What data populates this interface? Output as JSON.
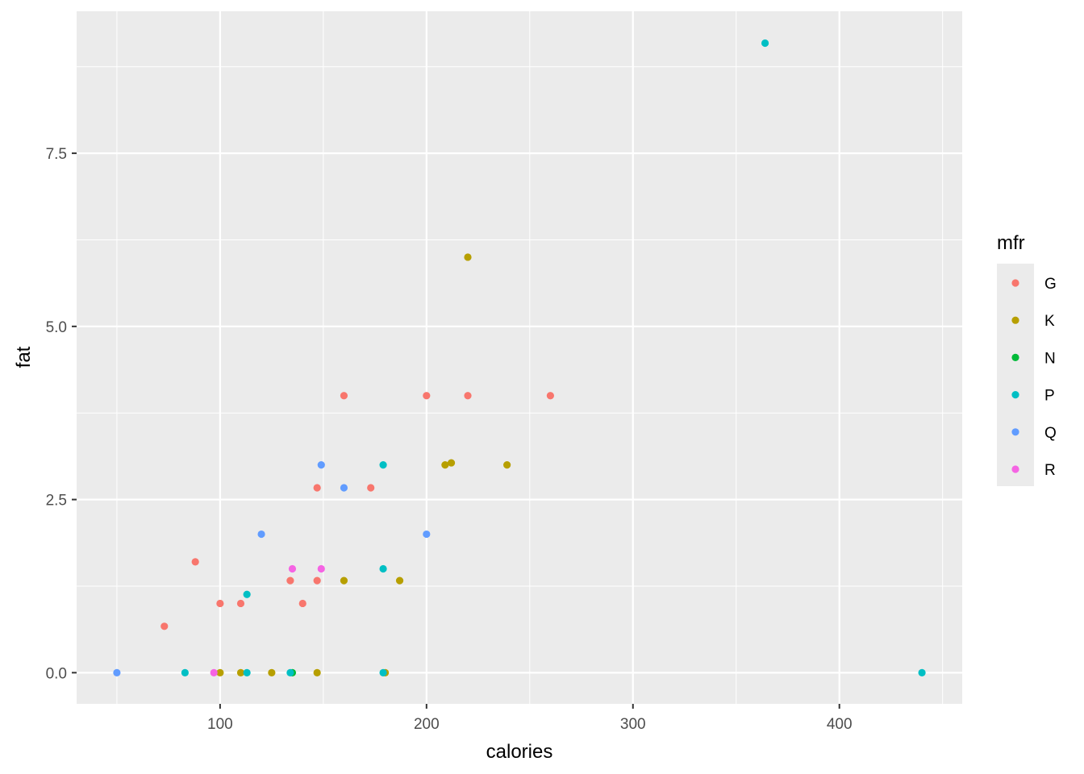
{
  "chart_data": {
    "type": "scatter",
    "title": "",
    "xlabel": "calories",
    "ylabel": "fat",
    "xlim": [
      30.5,
      459.5
    ],
    "ylim": [
      -0.45,
      9.55
    ],
    "x_ticks": [
      100,
      200,
      300,
      400
    ],
    "x_tick_labels": [
      "100",
      "200",
      "300",
      "400"
    ],
    "y_ticks": [
      0,
      2.5,
      5,
      7.5
    ],
    "y_tick_labels": [
      "0.0",
      "2.5",
      "5.0",
      "7.5"
    ],
    "grid": true,
    "legend": {
      "title": "mfr",
      "position": "right"
    },
    "series": [
      {
        "name": "G",
        "color": "#F8766D",
        "points": [
          {
            "x": 73,
            "y": 0.67
          },
          {
            "x": 88,
            "y": 1.6
          },
          {
            "x": 100,
            "y": 1
          },
          {
            "x": 110,
            "y": 1
          },
          {
            "x": 134,
            "y": 1.33
          },
          {
            "x": 140,
            "y": 1
          },
          {
            "x": 147,
            "y": 1.33
          },
          {
            "x": 147,
            "y": 2.67
          },
          {
            "x": 160,
            "y": 4
          },
          {
            "x": 173,
            "y": 2.67
          },
          {
            "x": 200,
            "y": 4
          },
          {
            "x": 220,
            "y": 4
          },
          {
            "x": 260,
            "y": 4
          }
        ]
      },
      {
        "name": "K",
        "color": "#B79F00",
        "points": [
          {
            "x": 100,
            "y": 0
          },
          {
            "x": 110,
            "y": 0
          },
          {
            "x": 125,
            "y": 0
          },
          {
            "x": 147,
            "y": 0
          },
          {
            "x": 160,
            "y": 1.33
          },
          {
            "x": 180,
            "y": 0
          },
          {
            "x": 187,
            "y": 1.33
          },
          {
            "x": 209,
            "y": 3
          },
          {
            "x": 212,
            "y": 3.03
          },
          {
            "x": 220,
            "y": 6
          },
          {
            "x": 239,
            "y": 3
          }
        ]
      },
      {
        "name": "N",
        "color": "#00BA38",
        "points": [
          {
            "x": 135,
            "y": 0
          }
        ]
      },
      {
        "name": "P",
        "color": "#00BFC4",
        "points": [
          {
            "x": 83,
            "y": 0
          },
          {
            "x": 113,
            "y": 0
          },
          {
            "x": 113,
            "y": 1.13
          },
          {
            "x": 134,
            "y": 0
          },
          {
            "x": 179,
            "y": 0
          },
          {
            "x": 179,
            "y": 1.5
          },
          {
            "x": 179,
            "y": 3
          },
          {
            "x": 364,
            "y": 9.09
          },
          {
            "x": 440,
            "y": 0
          }
        ]
      },
      {
        "name": "Q",
        "color": "#619CFF",
        "points": [
          {
            "x": 50,
            "y": 0
          },
          {
            "x": 120,
            "y": 2
          },
          {
            "x": 149,
            "y": 3
          },
          {
            "x": 160,
            "y": 2.67
          },
          {
            "x": 200,
            "y": 2
          }
        ]
      },
      {
        "name": "R",
        "color": "#F564E3",
        "points": [
          {
            "x": 97,
            "y": 0
          },
          {
            "x": 135,
            "y": 1.5
          },
          {
            "x": 149,
            "y": 1.5
          }
        ]
      }
    ]
  }
}
